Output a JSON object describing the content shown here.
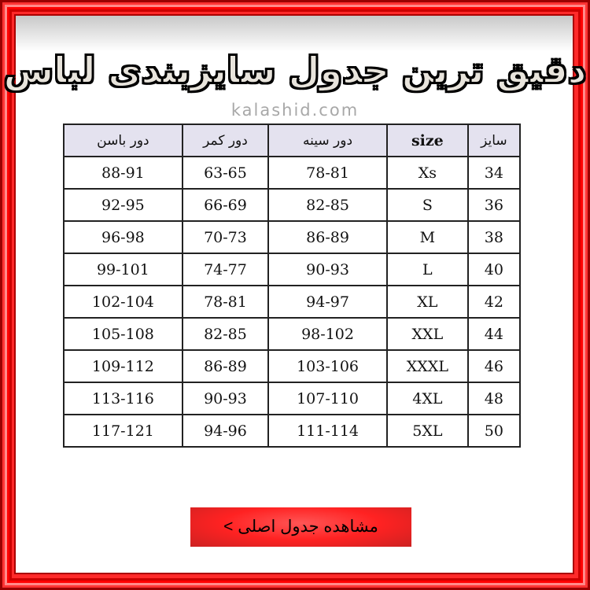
{
  "title": "دقیق ترین جدول سایزبندی لباس",
  "watermark": "kalashid.com",
  "table": {
    "headers": [
      "دور باسن",
      "دور کمر",
      "دور سینه",
      "size",
      "سایز"
    ],
    "rows": [
      [
        "88-91",
        "63-65",
        "78-81",
        "Xs",
        "34"
      ],
      [
        "92-95",
        "66-69",
        "82-85",
        "S",
        "36"
      ],
      [
        "96-98",
        "70-73",
        "86-89",
        "M",
        "38"
      ],
      [
        "99-101",
        "74-77",
        "90-93",
        "L",
        "40"
      ],
      [
        "102-104",
        "78-81",
        "94-97",
        "XL",
        "42"
      ],
      [
        "105-108",
        "82-85",
        "98-102",
        "XXL",
        "44"
      ],
      [
        "109-112",
        "86-89",
        "103-106",
        "XXXL",
        "46"
      ],
      [
        "113-116",
        "90-93",
        "107-110",
        "4XL",
        "48"
      ],
      [
        "117-121",
        "94-96",
        "111-114",
        "5XL",
        "50"
      ]
    ]
  },
  "button": {
    "label": "مشاهده جدول اصلی >"
  },
  "colors": {
    "frame": "#ff0000",
    "header_bg": "#e4e2ef",
    "button": "#f22222"
  }
}
